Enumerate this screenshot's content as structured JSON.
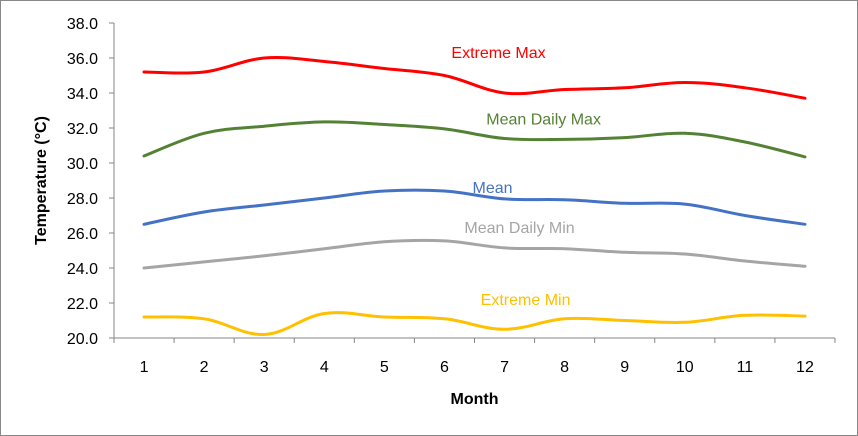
{
  "chart_data": {
    "type": "line",
    "xlabel": "Month",
    "ylabel": "Temperature (°C)",
    "x": [
      1,
      2,
      3,
      4,
      5,
      6,
      7,
      8,
      9,
      10,
      11,
      12
    ],
    "ylim": [
      20.0,
      38.0
    ],
    "yticks": [
      20.0,
      22.0,
      24.0,
      26.0,
      28.0,
      30.0,
      32.0,
      34.0,
      36.0,
      38.0
    ],
    "grid": false,
    "legend": "none",
    "series": [
      {
        "name": "Extreme Max",
        "color": "#ff0000",
        "values": [
          35.2,
          35.2,
          36.0,
          35.8,
          35.4,
          35.0,
          34.0,
          34.2,
          34.3,
          34.6,
          34.3,
          33.7
        ],
        "label_x": 6.9,
        "label_y": 36.0
      },
      {
        "name": "Mean Daily Max",
        "color": "#548235",
        "values": [
          30.4,
          31.7,
          32.1,
          32.35,
          32.2,
          31.95,
          31.4,
          31.35,
          31.45,
          31.7,
          31.2,
          30.35
        ],
        "label_x": 7.65,
        "label_y": 32.2
      },
      {
        "name": "Mean",
        "color": "#4472c4",
        "values": [
          26.5,
          27.2,
          27.6,
          28.0,
          28.4,
          28.4,
          27.95,
          27.9,
          27.7,
          27.65,
          27.0,
          26.5
        ],
        "label_x": 6.8,
        "label_y": 28.3
      },
      {
        "name": "Mean Daily Min",
        "color": "#a5a5a5",
        "values": [
          24.0,
          24.35,
          24.7,
          25.1,
          25.5,
          25.55,
          25.15,
          25.1,
          24.9,
          24.8,
          24.4,
          24.1
        ],
        "label_x": 7.25,
        "label_y": 26.0
      },
      {
        "name": "Extreme Min",
        "color": "#ffc000",
        "values": [
          21.2,
          21.1,
          20.2,
          21.4,
          21.2,
          21.1,
          20.5,
          21.1,
          21.0,
          20.9,
          21.3,
          21.25
        ],
        "label_x": 7.35,
        "label_y": 21.9
      }
    ]
  }
}
